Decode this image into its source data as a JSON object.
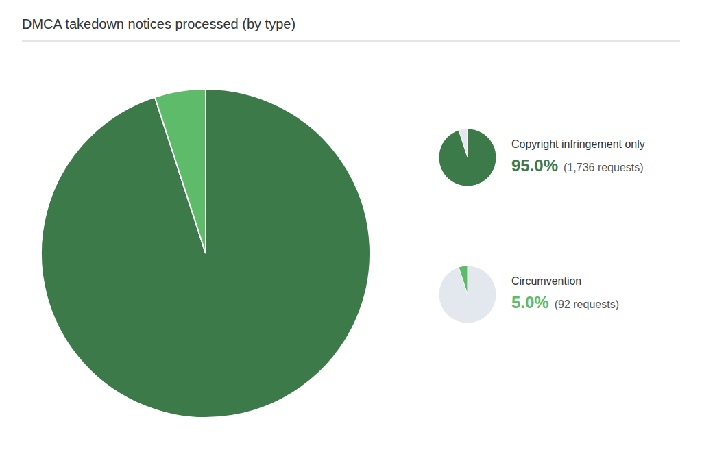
{
  "chart_data": {
    "type": "pie",
    "title": "DMCA takedown notices processed (by type)",
    "labels": [
      "Copyright infringement only",
      "Circumvention"
    ],
    "values": [
      95.0,
      5.0
    ],
    "value_labels": [
      "95.0%",
      "5.0%"
    ],
    "counts": [
      "(1,736 requests)",
      "(92 requests)"
    ],
    "colors": [
      "#3d7a4a",
      "#5dbb6a"
    ],
    "legend": "right"
  }
}
